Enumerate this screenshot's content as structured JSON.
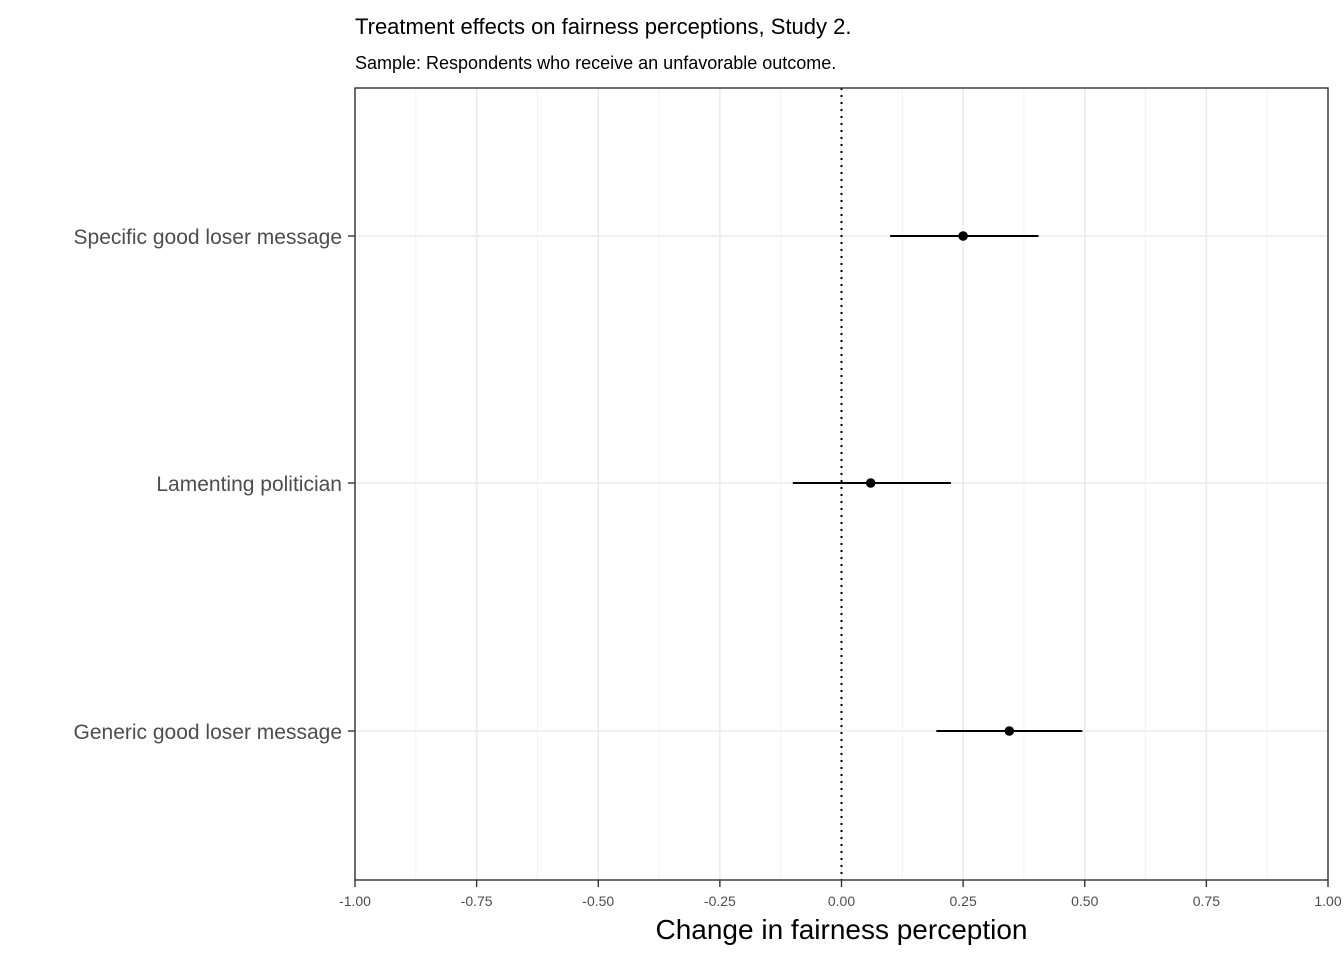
{
  "chart_data": {
    "type": "scatter",
    "title": "Treatment effects on fairness perceptions, Study 2.",
    "subtitle": "Sample: Respondents who receive an unfavorable outcome.",
    "xlabel": "Change in fairness perception",
    "ylabel": "",
    "xlim": [
      -1.0,
      1.0
    ],
    "x_ticks": [
      -1.0,
      -0.75,
      -0.5,
      -0.25,
      0.0,
      0.25,
      0.5,
      0.75,
      1.0
    ],
    "x_tick_labels": [
      "-1.00",
      "-0.75",
      "-0.50",
      "-0.25",
      "0.00",
      "0.25",
      "0.50",
      "0.75",
      "1.00"
    ],
    "reference_line": {
      "x": 0.0,
      "style": "dotted"
    },
    "grid": true,
    "categories": [
      "Specific good loser message",
      "Lamenting politician",
      "Generic good loser message"
    ],
    "estimates": [
      0.25,
      0.06,
      0.345
    ],
    "ci_lower": [
      0.1,
      -0.1,
      0.195
    ],
    "ci_upper": [
      0.405,
      0.225,
      0.495
    ],
    "point_color": "#000000"
  }
}
